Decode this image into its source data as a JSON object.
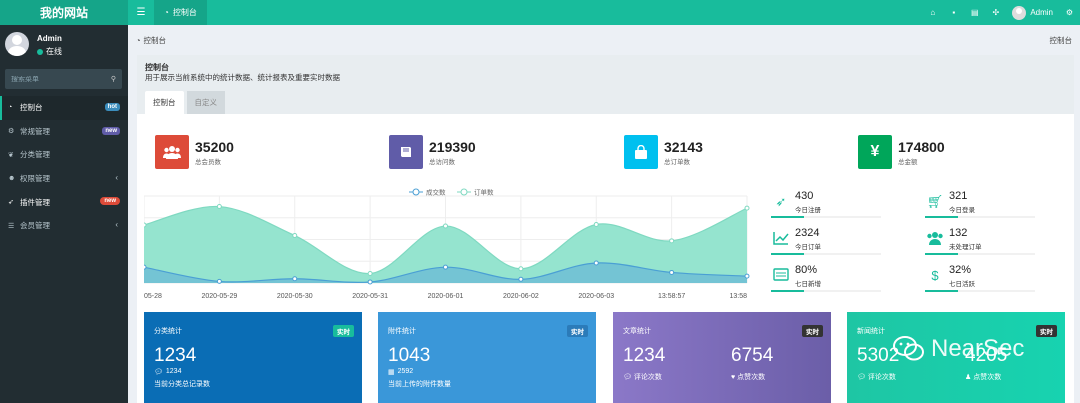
{
  "app": {
    "logo": "我的网站"
  },
  "topbar": {
    "menu_icon": "menu-icon",
    "active_tab": {
      "icon": "dashboard-icon",
      "label": "控制台"
    },
    "right_icons": [
      "home-icon",
      "trash-icon",
      "language-icon",
      "fullscreen-icon"
    ],
    "admin_label": "Admin",
    "settings_icon": "gears-icon"
  },
  "sidebar": {
    "user": {
      "name": "Admin",
      "status": "在线"
    },
    "search": {
      "placeholder": "搜索菜单"
    },
    "items": [
      {
        "label": "控制台",
        "icon": "dashboard-icon",
        "badge": "hot",
        "active": true
      },
      {
        "label": "常规管理",
        "icon": "cogs-icon",
        "badge": "new"
      },
      {
        "label": "分类管理",
        "icon": "leaf-icon"
      },
      {
        "label": "权限管理",
        "icon": "group-icon",
        "caret": "‹"
      },
      {
        "label": "插件管理",
        "icon": "rocket-icon",
        "badge": "new"
      },
      {
        "label": "会员管理",
        "icon": "list-icon",
        "caret": "‹"
      }
    ]
  },
  "header": {
    "breadcrumb": "控制台",
    "right": "控制台"
  },
  "panel": {
    "title": "控制台",
    "description": "用于展示当前系统中的统计数据、统计报表及重要实时数据",
    "tabs": [
      "控制台",
      "自定义"
    ]
  },
  "stats": [
    {
      "value": "35200",
      "label": "总会员数",
      "color": "#dd4b39",
      "icon": "users-icon"
    },
    {
      "value": "219390",
      "label": "总访问数",
      "color": "#605ca8",
      "icon": "book-icon"
    },
    {
      "value": "32143",
      "label": "总订单数",
      "color": "#00c0ef",
      "icon": "shopping-bag-icon"
    },
    {
      "value": "174800",
      "label": "总金额",
      "color": "#00a65a",
      "icon": "yen-icon"
    }
  ],
  "chart_data": {
    "type": "area",
    "legend": [
      "成交数",
      "订单数"
    ],
    "legend_position": "top-center",
    "x": [
      "05-28",
      "2020-05-29",
      "2020-05-30",
      "2020-05-31",
      "2020-06-01",
      "2020-06-02",
      "2020-06-03",
      "13:58:57",
      "13:58"
    ],
    "series": [
      {
        "name": "订单数",
        "color": "#8fe3cc",
        "values": [
          1100,
          1450,
          900,
          180,
          1080,
          270,
          1110,
          800,
          1420
        ]
      },
      {
        "name": "成交数",
        "color": "#5aaad9",
        "values": [
          300,
          30,
          80,
          20,
          300,
          70,
          380,
          200,
          130
        ]
      }
    ],
    "ylim": [
      0,
      1650
    ],
    "grid": true
  },
  "mini_stats": [
    {
      "value": "430",
      "label": "今日注册",
      "icon": "rocket-icon"
    },
    {
      "value": "321",
      "label": "今日登录",
      "icon": "cart-icon"
    },
    {
      "value": "2324",
      "label": "今日订单",
      "icon": "line-chart-icon"
    },
    {
      "value": "132",
      "label": "未处理订单",
      "icon": "users-icon"
    },
    {
      "value": "80%",
      "label": "七日新增",
      "icon": "calendar-icon"
    },
    {
      "value": "32%",
      "label": "七日活跃",
      "icon": "dollar-icon"
    }
  ],
  "cards": [
    {
      "title": "分类统计",
      "badge": "实时",
      "value": "1234",
      "sub_icon": "comment-icon",
      "sub_value": "1234",
      "note": "当前分类总记录数"
    },
    {
      "title": "附件统计",
      "badge": "实时",
      "value": "1043",
      "sub_icon": "file-icon",
      "sub_value": "2592",
      "note": "当前上传的附件数量"
    },
    {
      "title": "文章统计",
      "badge": "实时",
      "values": [
        "1234",
        "6754"
      ],
      "labels": [
        "评论次数",
        "点赞次数"
      ]
    },
    {
      "title": "新闻统计",
      "badge": "实时",
      "values": [
        "5302",
        "4205"
      ],
      "labels": [
        "评论次数",
        "点赞次数"
      ]
    }
  ],
  "watermark": "NearSec",
  "colors": {
    "accent": "#18bc9c",
    "sidebar": "#222d32"
  }
}
